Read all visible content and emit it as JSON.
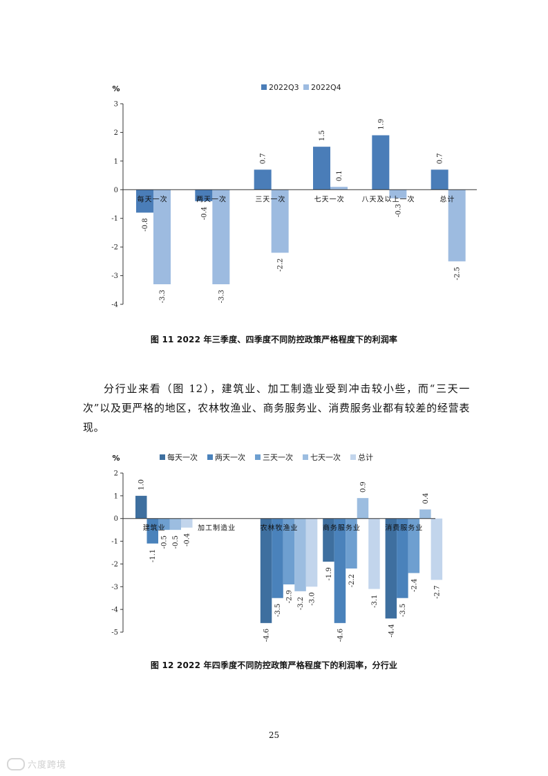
{
  "charts": {
    "chart1": {
      "unit_label": "%",
      "legend": [
        "2022Q3",
        "2022Q4"
      ],
      "category_labels": [
        "每天一次",
        "两天一次",
        "三天一次",
        "七天一次",
        "八天及以上一次",
        "总计"
      ],
      "series_colors": [
        "#4a7db8",
        "#9dbbe0"
      ]
    },
    "chart2": {
      "unit_label": "%",
      "legend": [
        "每天一次",
        "两天一次",
        "三天一次",
        "七天一次",
        "总计"
      ],
      "category_labels": [
        "建筑业",
        "加工制造业",
        "农林牧渔业",
        "商务服务业",
        "消费服务业"
      ],
      "series_colors": [
        "#3e6f9f",
        "#4a82bb",
        "#6e9fd0",
        "#9cbde0",
        "#c2d5ec"
      ]
    }
  },
  "chart_data": [
    {
      "type": "bar",
      "categories": [
        "每天一次",
        "两天一次",
        "三天一次",
        "七天一次",
        "八天及以上一次",
        "总计"
      ],
      "series": [
        {
          "name": "2022Q3",
          "values": [
            -0.8,
            -0.4,
            0.7,
            1.5,
            1.9,
            0.7
          ]
        },
        {
          "name": "2022Q4",
          "values": [
            -3.3,
            -3.3,
            -2.2,
            0.1,
            -0.3,
            -2.5
          ]
        }
      ],
      "title": "",
      "xlabel": "",
      "ylabel": "%",
      "ylim": [
        -4,
        3
      ],
      "yticks": [
        3,
        2,
        1,
        0,
        -1,
        -2,
        -3,
        -4
      ],
      "legend_position": "top",
      "grid": false
    },
    {
      "type": "bar",
      "categories": [
        "建筑业",
        "加工制造业",
        "农林牧渔业",
        "商务服务业",
        "消费服务业"
      ],
      "series": [
        {
          "name": "每天一次",
          "values": [
            1.0,
            null,
            -4.6,
            -1.9,
            -4.4
          ]
        },
        {
          "name": "两天一次",
          "values": [
            -1.1,
            null,
            -3.5,
            -4.6,
            -3.5
          ]
        },
        {
          "name": "三天一次",
          "values": [
            -0.5,
            null,
            -2.9,
            -2.2,
            -2.4
          ]
        },
        {
          "name": "七天一次",
          "values": [
            -0.5,
            null,
            -3.2,
            0.9,
            0.4
          ]
        },
        {
          "name": "总计",
          "values": [
            -0.4,
            null,
            -3.0,
            -3.1,
            -2.7
          ]
        }
      ],
      "title": "",
      "xlabel": "",
      "ylabel": "%",
      "ylim": [
        -5,
        2
      ],
      "yticks": [
        2,
        1,
        0,
        -1,
        -2,
        -3,
        -4,
        -5
      ],
      "legend_position": "top",
      "grid": false
    }
  ],
  "captions": {
    "figure11": "图 11  2022 年三季度、四季度不同防控政策严格程度下的利润率",
    "figure12": "图 12  2022 年四季度不同防控政策严格程度下的利润率，分行业"
  },
  "paragraph": "分行业来看（图 12），建筑业、加工制造业受到冲击较小些，而“三天一次”以及更严格的地区，农林牧渔业、商务服务业、消费服务业都有较差的经营表现。",
  "page_number": "25",
  "watermark": "六度跨境"
}
